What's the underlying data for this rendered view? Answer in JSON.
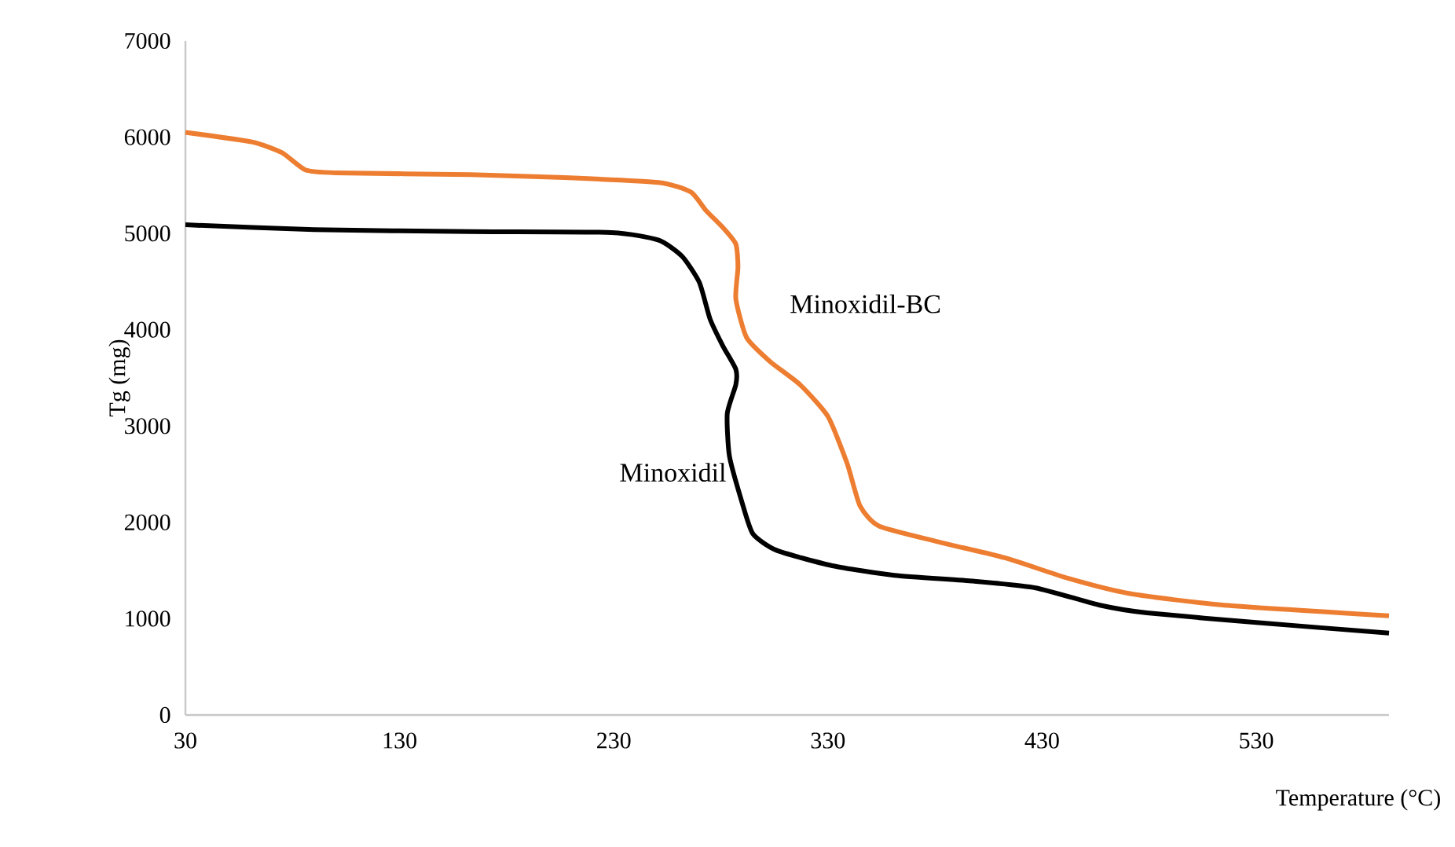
{
  "chart_data": {
    "type": "line",
    "xlabel": "Temperature (°C)",
    "ylabel": "Tg (mg)",
    "xlim": [
      30,
      592
    ],
    "xticks": [
      30,
      130,
      230,
      330,
      430,
      530
    ],
    "ylim": [
      0,
      7000
    ],
    "yticks": [
      0,
      1000,
      2000,
      3000,
      4000,
      5000,
      6000,
      7000
    ],
    "grid": false,
    "legend": false,
    "marker": "none",
    "line_style": "solid",
    "series": [
      {
        "name": "Minoxidil",
        "color": "#000000",
        "x": [
          30,
          90,
          163,
          229,
          251,
          262,
          270,
          275,
          281,
          287,
          287,
          283,
          284,
          290,
          295,
          306,
          332,
          361,
          398,
          427,
          457,
          479,
          530,
          592
        ],
        "values": [
          5090,
          5040,
          5020,
          5010,
          4930,
          4760,
          4490,
          4110,
          3830,
          3590,
          3430,
          3130,
          2690,
          2200,
          1880,
          1710,
          1550,
          1450,
          1390,
          1320,
          1140,
          1060,
          960,
          850
        ]
      },
      {
        "name": "Minoxidil-BC",
        "color": "#ed7d31",
        "x": [
          30,
          61,
          75,
          86,
          100,
          163,
          207,
          251,
          266,
          273,
          281,
          287,
          288,
          287,
          292,
          303,
          317,
          330,
          339,
          345,
          354,
          383,
          413,
          442,
          471,
          515,
          592
        ],
        "values": [
          6050,
          5950,
          5840,
          5660,
          5630,
          5610,
          5580,
          5530,
          5430,
          5240,
          5060,
          4890,
          4650,
          4320,
          3920,
          3670,
          3430,
          3100,
          2610,
          2170,
          1960,
          1790,
          1630,
          1420,
          1260,
          1140,
          1030
        ]
      }
    ]
  }
}
